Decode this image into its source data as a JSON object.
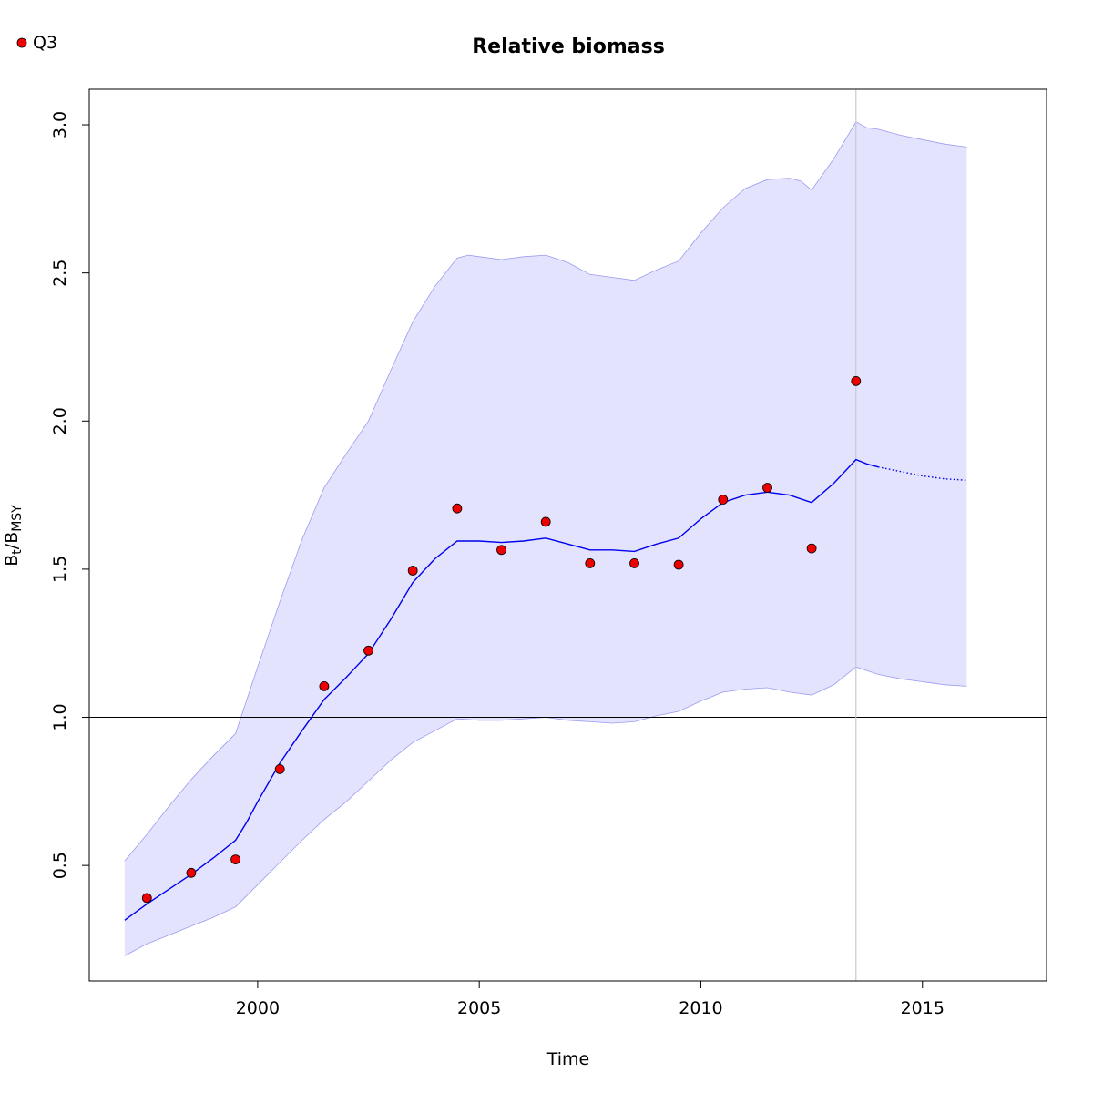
{
  "chart_data": {
    "type": "line",
    "title": "Relative biomass",
    "xlabel": "Time",
    "ylabel_main": "B",
    "ylabel_sub1": "t",
    "ylabel_sep": "/B",
    "ylabel_sub2": "MSY",
    "xlim": [
      1996.2,
      2017.8
    ],
    "ylim": [
      0.11,
      3.12
    ],
    "x_ticks": [
      2000,
      2005,
      2010,
      2015
    ],
    "x_tick_labels": [
      "2000",
      "2005",
      "2010",
      "2015"
    ],
    "y_ticks": [
      0.5,
      1.0,
      1.5,
      2.0,
      2.5,
      3.0
    ],
    "y_tick_labels": [
      "0.5",
      "1.0",
      "1.5",
      "2.0",
      "2.5",
      "3.0"
    ],
    "reference_line_y": 1.0,
    "last_observation_x": 2013.5,
    "legend": {
      "position": "top-left",
      "entries": [
        {
          "label": "Q3",
          "color": "#ee0000"
        }
      ]
    },
    "colors": {
      "band": "#e3e3fd",
      "band_edge": "#9b9bf0",
      "line": "#0000ee",
      "point": "#ee0000",
      "vline": "#c8c8d8"
    },
    "series": [
      {
        "name": "Q3",
        "kind": "points",
        "x": [
          1997.5,
          1998.5,
          1999.5,
          2000.5,
          2001.5,
          2002.5,
          2003.5,
          2004.5,
          2005.5,
          2006.5,
          2007.5,
          2008.5,
          2009.5,
          2010.5,
          2011.5,
          2012.5,
          2013.5
        ],
        "y": [
          0.39,
          0.475,
          0.52,
          0.825,
          1.105,
          1.225,
          1.495,
          1.705,
          1.565,
          1.66,
          1.52,
          1.52,
          1.515,
          1.735,
          1.775,
          1.57,
          2.135
        ]
      },
      {
        "kind": "estimate",
        "x": [
          1997.0,
          1997.5,
          1998.0,
          1998.5,
          1999.0,
          1999.5,
          1999.75,
          2000.0,
          2000.5,
          2001.0,
          2001.5,
          2002.0,
          2002.5,
          2003.0,
          2003.5,
          2004.0,
          2004.5,
          2005.0,
          2005.5,
          2006.0,
          2006.5,
          2007.0,
          2007.5,
          2008.0,
          2008.5,
          2009.0,
          2009.5,
          2010.0,
          2010.5,
          2011.0,
          2011.5,
          2012.0,
          2012.5,
          2013.0,
          2013.5,
          2013.75,
          2014.0
        ],
        "y": [
          0.315,
          0.37,
          0.42,
          0.47,
          0.525,
          0.585,
          0.645,
          0.715,
          0.845,
          0.955,
          1.06,
          1.135,
          1.215,
          1.33,
          1.455,
          1.535,
          1.595,
          1.595,
          1.59,
          1.595,
          1.605,
          1.585,
          1.565,
          1.565,
          1.56,
          1.585,
          1.605,
          1.67,
          1.725,
          1.75,
          1.76,
          1.75,
          1.725,
          1.79,
          1.87,
          1.855,
          1.845
        ]
      },
      {
        "kind": "prediction",
        "x": [
          2014.0,
          2014.5,
          2015.0,
          2015.5,
          2016.0
        ],
        "y": [
          1.845,
          1.83,
          1.815,
          1.805,
          1.8
        ]
      },
      {
        "kind": "interval-upper",
        "x": [
          1997.0,
          1997.5,
          1998.0,
          1998.5,
          1999.0,
          1999.5,
          2000.0,
          2000.5,
          2001.0,
          2001.5,
          2002.0,
          2002.5,
          2003.0,
          2003.5,
          2004.0,
          2004.5,
          2004.75,
          2005.0,
          2005.5,
          2006.0,
          2006.5,
          2007.0,
          2007.5,
          2008.0,
          2008.5,
          2009.0,
          2009.5,
          2010.0,
          2010.5,
          2011.0,
          2011.5,
          2012.0,
          2012.25,
          2012.5,
          2013.0,
          2013.5,
          2013.75,
          2014.0,
          2014.5,
          2015.0,
          2015.5,
          2016.0
        ],
        "y": [
          0.515,
          0.605,
          0.7,
          0.79,
          0.87,
          0.945,
          1.17,
          1.39,
          1.6,
          1.775,
          1.89,
          2.0,
          2.17,
          2.335,
          2.455,
          2.55,
          2.56,
          2.555,
          2.545,
          2.555,
          2.56,
          2.535,
          2.495,
          2.485,
          2.475,
          2.51,
          2.54,
          2.635,
          2.72,
          2.785,
          2.815,
          2.82,
          2.81,
          2.78,
          2.885,
          3.01,
          2.99,
          2.985,
          2.965,
          2.95,
          2.935,
          2.925
        ]
      },
      {
        "kind": "interval-lower",
        "x": [
          1997.0,
          1997.5,
          1998.0,
          1998.5,
          1999.0,
          1999.5,
          2000.0,
          2000.5,
          2001.0,
          2001.5,
          2002.0,
          2002.5,
          2003.0,
          2003.5,
          2004.0,
          2004.5,
          2005.0,
          2005.5,
          2006.0,
          2006.5,
          2007.0,
          2007.5,
          2008.0,
          2008.5,
          2009.0,
          2009.5,
          2010.0,
          2010.5,
          2011.0,
          2011.5,
          2012.0,
          2012.5,
          2013.0,
          2013.5,
          2014.0,
          2014.5,
          2015.0,
          2015.5,
          2016.0
        ],
        "y": [
          0.195,
          0.235,
          0.265,
          0.295,
          0.325,
          0.36,
          0.435,
          0.51,
          0.585,
          0.655,
          0.715,
          0.785,
          0.855,
          0.915,
          0.955,
          0.995,
          0.99,
          0.99,
          0.995,
          1.0,
          0.99,
          0.985,
          0.98,
          0.985,
          1.005,
          1.02,
          1.055,
          1.085,
          1.095,
          1.1,
          1.085,
          1.075,
          1.11,
          1.17,
          1.145,
          1.13,
          1.12,
          1.11,
          1.105
        ]
      }
    ]
  }
}
